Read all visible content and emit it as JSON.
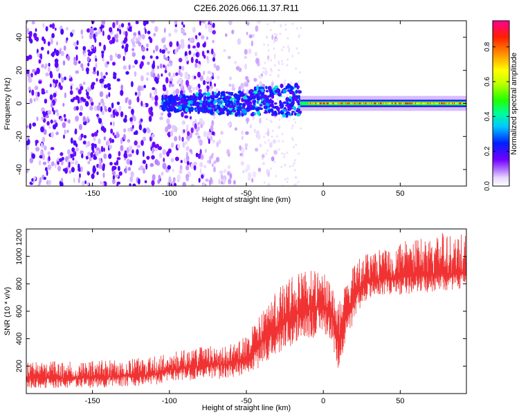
{
  "title": "C2E6.2026.066.11.37.R11",
  "chart_data": [
    {
      "type": "heatmap",
      "xlabel": "Height of straight line (km)",
      "ylabel": "Frequency (Hz)",
      "xlim": [
        -193,
        93
      ],
      "ylim": [
        -50,
        50
      ],
      "x_ticks": [
        -150,
        -100,
        -50,
        0,
        50
      ],
      "y_ticks": [
        -40,
        -20,
        0,
        20,
        40
      ],
      "colorbar": {
        "label": "Normalized spectral amplitude",
        "range": [
          0,
          0.95
        ],
        "ticks": [
          0,
          0.2,
          0.4,
          0.6,
          0.8
        ],
        "tick_labels": [
          "0.0",
          "0.2",
          "0.4",
          "0.6",
          "0.8"
        ]
      },
      "regions": [
        {
          "x_range": [
            -193,
            -100
          ],
          "freq_range": [
            -50,
            50
          ],
          "amplitude": 0.1,
          "description": "broadband noise"
        },
        {
          "x_range": [
            -100,
            -15
          ],
          "freq_range": [
            -8,
            10
          ],
          "amplitude": 0.25,
          "description": "spread echo"
        },
        {
          "x_range": [
            -15,
            93
          ],
          "freq_range": [
            -2,
            2
          ],
          "amplitude": 0.9,
          "description": "narrow echo near 0 Hz"
        }
      ]
    },
    {
      "type": "line",
      "xlabel": "Height of straight line (km)",
      "ylabel": "SNR (10 * v/v)",
      "xlim": [
        -193,
        93
      ],
      "ylim": [
        0,
        1200
      ],
      "x_ticks": [
        -150,
        -100,
        -50,
        0,
        50
      ],
      "y_ticks": [
        200,
        400,
        600,
        800,
        1000,
        1200
      ],
      "series": [
        {
          "name": "SNR",
          "color": "#f03232",
          "x": [
            -193,
            -150,
            -110,
            -100,
            -80,
            -60,
            -50,
            -40,
            -30,
            -20,
            -10,
            0,
            5,
            10,
            15,
            20,
            25,
            35,
            50,
            70,
            93
          ],
          "y_low": [
            40,
            40,
            60,
            90,
            100,
            110,
            130,
            200,
            280,
            340,
            390,
            440,
            400,
            140,
            380,
            520,
            640,
            720,
            720,
            740,
            760
          ],
          "y_high": [
            230,
            240,
            270,
            300,
            340,
            360,
            420,
            600,
            760,
            880,
            900,
            900,
            820,
            700,
            820,
            960,
            1000,
            1050,
            1100,
            1160,
            1200
          ],
          "y_mean": [
            110,
            115,
            140,
            170,
            200,
            220,
            260,
            370,
            480,
            560,
            620,
            650,
            580,
            360,
            570,
            700,
            790,
            830,
            850,
            870,
            880
          ]
        }
      ]
    }
  ]
}
